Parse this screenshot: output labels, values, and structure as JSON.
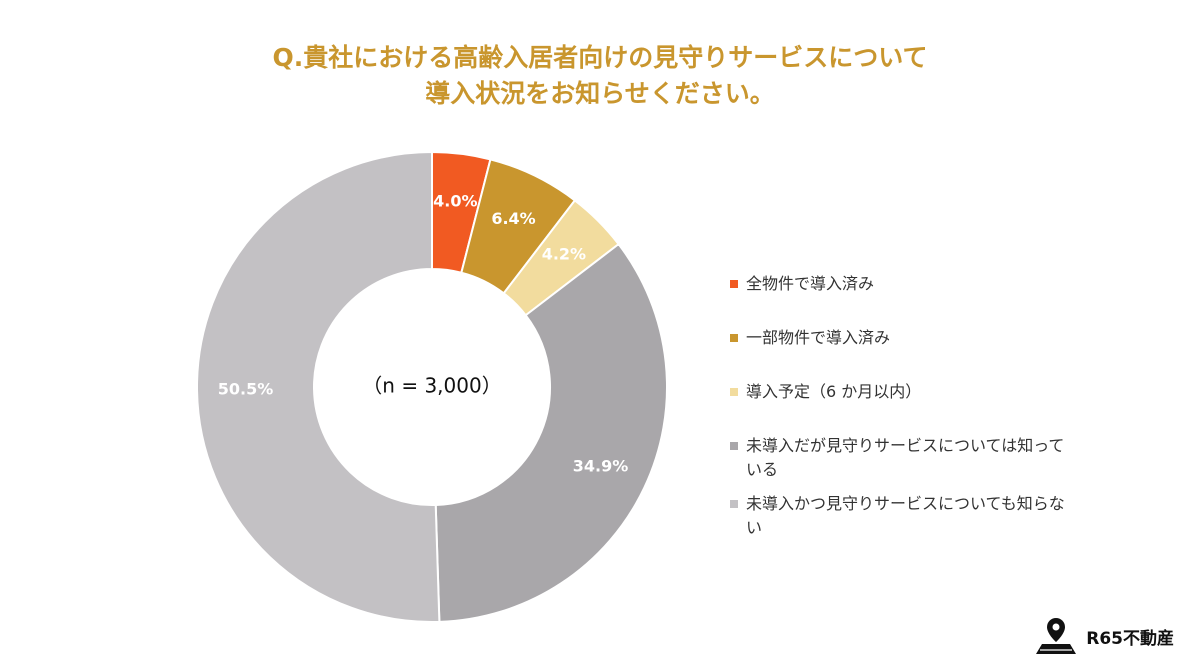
{
  "chart_data": {
    "type": "donut",
    "title": [
      "Q.貴社における高齢入居者向けの見守りサービスについて",
      "導入状況をお知らせください。"
    ],
    "center_label": "（n = 3,000）",
    "categories": [
      "全物件で導入済み",
      "一部物件で導入済み",
      "導入予定（6 か月以内）",
      "未導入だが見守りサービスについては知っている",
      "未導入かつ見守りサービスについても知らない"
    ],
    "values": [
      4.0,
      6.4,
      4.2,
      34.9,
      50.5
    ],
    "value_labels": [
      "4.0%",
      "6.4%",
      "4.2%",
      "34.9%",
      "50.5%"
    ],
    "colors": [
      "#f15a22",
      "#c9962e",
      "#f2dc9e",
      "#a9a7aa",
      "#c3c1c4"
    ],
    "legend": "right"
  },
  "logo": "R65不動産"
}
